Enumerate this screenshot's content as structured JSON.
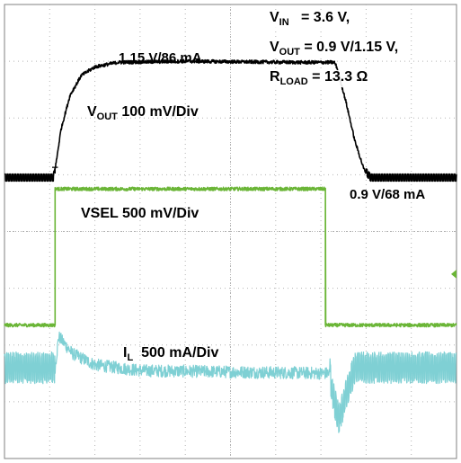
{
  "chart_data": {
    "type": "line",
    "title": "",
    "grid": true,
    "grid_divisions": {
      "x": 10,
      "y": 8
    },
    "colors": {
      "vout": "#000000",
      "vsel": "#6ab536",
      "il": "#7fd0d4",
      "grid": "#b4b4b4",
      "marker": "#6ab536"
    },
    "x_range_div": [
      0,
      10
    ],
    "y_range_div": [
      0,
      8
    ],
    "series": [
      {
        "key": "vout",
        "name": "VOUT 100 mV/Div",
        "name_main": "V",
        "name_sub": "OUT",
        "name_rest": " 100 mV/Div",
        "points": [
          [
            0,
            4.95
          ],
          [
            0.9,
            4.95
          ],
          [
            1.08,
            4.95
          ],
          [
            1.15,
            5.25
          ],
          [
            1.25,
            5.8
          ],
          [
            1.45,
            6.4
          ],
          [
            1.7,
            6.75
          ],
          [
            2.0,
            6.9
          ],
          [
            2.5,
            6.98
          ],
          [
            4,
            7.0
          ],
          [
            6.5,
            6.98
          ],
          [
            7.3,
            6.98
          ],
          [
            7.35,
            6.9
          ],
          [
            7.55,
            6.3
          ],
          [
            7.75,
            5.6
          ],
          [
            7.95,
            5.1
          ],
          [
            8.1,
            4.95
          ],
          [
            10,
            4.95
          ]
        ],
        "ripple": 0.12
      },
      {
        "key": "vsel",
        "name": "VSEL 500 mV/Div",
        "name_main": "VSEL",
        "name_sub": "",
        "name_rest": " 500 mV/Div",
        "points": [
          [
            0,
            2.35
          ],
          [
            1.12,
            2.35
          ],
          [
            1.12,
            4.75
          ],
          [
            7.1,
            4.75
          ],
          [
            7.1,
            2.35
          ],
          [
            10,
            2.35
          ]
        ],
        "ripple": 0.06
      },
      {
        "key": "il",
        "name": "IL 500 mA/Div",
        "name_main": "I",
        "name_sub": "L",
        "name_rest": "  500 mA/Div",
        "points": [
          [
            0,
            1.6
          ],
          [
            1.12,
            1.6
          ],
          [
            1.2,
            2.15
          ],
          [
            1.5,
            1.85
          ],
          [
            2,
            1.65
          ],
          [
            3,
            1.55
          ],
          [
            7.2,
            1.5
          ],
          [
            7.25,
            1.15
          ],
          [
            7.4,
            0.7
          ],
          [
            7.55,
            1.1
          ],
          [
            7.75,
            1.6
          ],
          [
            10,
            1.6
          ]
        ],
        "ripple": 0.3
      }
    ]
  },
  "annotations": {
    "vin": {
      "main": "V",
      "sub": "IN",
      "rest": "   = 3.6 V,"
    },
    "vout_set": {
      "main": "V",
      "sub": "OUT",
      "rest": " = 0.9 V/1.15 V,"
    },
    "rload": {
      "main": "R",
      "sub": "LOAD",
      "rest": " = 13.3 Ω"
    },
    "high_level": "1.15 V/86 mA",
    "low_level": "0.9 V/68 mA"
  }
}
